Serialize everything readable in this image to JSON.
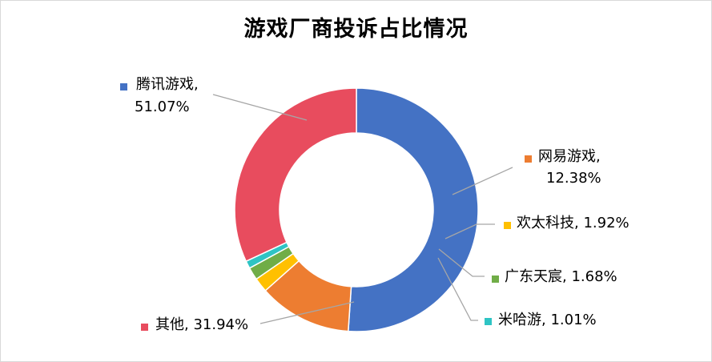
{
  "chart_data": {
    "type": "pie",
    "variant": "donut",
    "title": "游戏厂商投诉占比情况",
    "slices": [
      {
        "label": "腾讯游戏",
        "value": 51.07,
        "display": "51.07%",
        "color": "#4472C4"
      },
      {
        "label": "网易游戏",
        "value": 12.38,
        "display": "12.38%",
        "color": "#ED7D31"
      },
      {
        "label": "欢太科技",
        "value": 1.92,
        "display": "1.92%",
        "color": "#FFC000"
      },
      {
        "label": "广东天宸",
        "value": 1.68,
        "display": "1.68%",
        "color": "#70AD47"
      },
      {
        "label": "米哈游",
        "value": 1.01,
        "display": "1.01%",
        "color": "#2EC4C4"
      },
      {
        "label": "其他",
        "value": 31.94,
        "display": "31.94%",
        "color": "#E84C5E"
      }
    ],
    "leader_line_color": "#a6a6a6"
  }
}
